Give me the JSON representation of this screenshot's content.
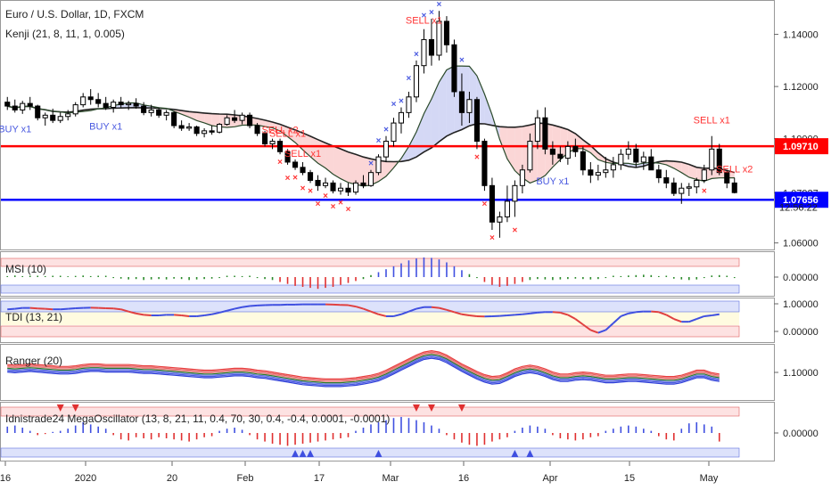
{
  "header": {
    "title": "Euro / U.S. Dollar, 1D, FXCM",
    "indicator": "Kenji (21, 8, 11, 1, 0.005)"
  },
  "colors": {
    "up_candle": "#ffffff",
    "down_candle": "#000000",
    "resistance_line": "#ff0000",
    "support_line": "#0000ff",
    "buy_marker": "#4a5ae0",
    "sell_marker": "#ff3333",
    "fast_ma": "#2b4a2b",
    "slow_ma": "#222222",
    "cloud_bull": "#d4d8f5",
    "cloud_bear": "#fbd6d6"
  },
  "chart_data": [
    {
      "type": "candlestick",
      "panel": "main",
      "title": "",
      "y_ticks": [
        "1.14000",
        "1.12000",
        "1.10000",
        "1.07927",
        "1.06000"
      ],
      "ylim": [
        1.0575,
        1.1525
      ],
      "x_ticks": [
        "16",
        "2020",
        "20",
        "Feb",
        "17",
        "Mar",
        "16",
        "Apr",
        "15",
        "May"
      ],
      "price_labels": [
        {
          "name": "resistance",
          "text": "1.09710",
          "value": 1.0971,
          "color": "#ff0000"
        },
        {
          "name": "support",
          "text": "1.07656",
          "value": 1.07656,
          "color": "#0000ff"
        }
      ],
      "last_price": "1.07927",
      "countdown": "12:56:22",
      "signal_labels": [
        {
          "text": "BUY x1",
          "type": "buy",
          "index": 1
        },
        {
          "text": "BUY x1",
          "type": "buy",
          "index": 13
        },
        {
          "text": "SELL x2",
          "type": "sell",
          "index": 36
        },
        {
          "text": "SELL x1",
          "type": "sell",
          "index": 37
        },
        {
          "text": "SELL x1",
          "type": "sell",
          "index": 39
        },
        {
          "text": "SELL x1",
          "type": "sell",
          "index": 57
        },
        {
          "text": "SELL x1",
          "type": "sell",
          "index": 55
        },
        {
          "text": "BUY x1",
          "type": "buy",
          "index": 72
        },
        {
          "text": "SELL x2",
          "type": "sell",
          "index": 96
        },
        {
          "text": "SELL x1",
          "type": "sell",
          "index": 93
        }
      ],
      "ohlc": [
        [
          1.114,
          1.116,
          1.111,
          1.1125
        ],
        [
          1.1125,
          1.115,
          1.11,
          1.111
        ],
        [
          1.111,
          1.1145,
          1.1095,
          1.1135
        ],
        [
          1.1135,
          1.116,
          1.111,
          1.1125
        ],
        [
          1.1125,
          1.113,
          1.107,
          1.108
        ],
        [
          1.108,
          1.11,
          1.105,
          1.109
        ],
        [
          1.109,
          1.1115,
          1.106,
          1.107
        ],
        [
          1.107,
          1.11,
          1.106,
          1.1085
        ],
        [
          1.1085,
          1.111,
          1.107,
          1.1095
        ],
        [
          1.1095,
          1.114,
          1.1085,
          1.113
        ],
        [
          1.113,
          1.1175,
          1.112,
          1.116
        ],
        [
          1.116,
          1.119,
          1.113,
          1.115
        ],
        [
          1.115,
          1.1175,
          1.112,
          1.1135
        ],
        [
          1.1135,
          1.116,
          1.111,
          1.112
        ],
        [
          1.112,
          1.115,
          1.11,
          1.114
        ],
        [
          1.114,
          1.116,
          1.112,
          1.113
        ],
        [
          1.113,
          1.1145,
          1.111,
          1.1135
        ],
        [
          1.1135,
          1.1155,
          1.1115,
          1.1125
        ],
        [
          1.1125,
          1.114,
          1.109,
          1.11
        ],
        [
          1.11,
          1.113,
          1.1085,
          1.111
        ],
        [
          1.111,
          1.112,
          1.108,
          1.109
        ],
        [
          1.109,
          1.111,
          1.107,
          1.11
        ],
        [
          1.11,
          1.1105,
          1.104,
          1.105
        ],
        [
          1.105,
          1.107,
          1.103,
          1.104
        ],
        [
          1.104,
          1.106,
          1.103,
          1.1045
        ],
        [
          1.1045,
          1.105,
          1.101,
          1.102
        ],
        [
          1.102,
          1.104,
          1.1005,
          1.103
        ],
        [
          1.103,
          1.105,
          1.1015,
          1.1025
        ],
        [
          1.1025,
          1.106,
          1.102,
          1.1055
        ],
        [
          1.1055,
          1.109,
          1.105,
          1.108
        ],
        [
          1.108,
          1.111,
          1.106,
          1.107
        ],
        [
          1.107,
          1.11,
          1.1055,
          1.109
        ],
        [
          1.109,
          1.11,
          1.104,
          1.105
        ],
        [
          1.105,
          1.106,
          1.101,
          1.102
        ],
        [
          1.102,
          1.103,
          1.097,
          1.098
        ],
        [
          1.098,
          1.1,
          1.096,
          1.099
        ],
        [
          1.099,
          1.1,
          1.094,
          1.095
        ],
        [
          1.095,
          1.096,
          1.09,
          1.091
        ],
        [
          1.091,
          1.092,
          1.088,
          1.089
        ],
        [
          1.089,
          1.091,
          1.086,
          1.087
        ],
        [
          1.087,
          1.088,
          1.083,
          1.084
        ],
        [
          1.084,
          1.086,
          1.08,
          1.082
        ],
        [
          1.082,
          1.085,
          1.081,
          1.083
        ],
        [
          1.083,
          1.084,
          1.079,
          1.08
        ],
        [
          1.08,
          1.083,
          1.0785,
          1.081
        ],
        [
          1.081,
          1.083,
          1.078,
          1.0795
        ],
        [
          1.0795,
          1.084,
          1.0785,
          1.083
        ],
        [
          1.083,
          1.086,
          1.081,
          1.082
        ],
        [
          1.082,
          1.088,
          1.0815,
          1.087
        ],
        [
          1.087,
          1.094,
          1.086,
          1.093
        ],
        [
          1.093,
          1.101,
          1.091,
          1.099
        ],
        [
          1.099,
          1.108,
          1.097,
          1.106
        ],
        [
          1.106,
          1.112,
          1.102,
          1.11
        ],
        [
          1.11,
          1.118,
          1.108,
          1.116
        ],
        [
          1.116,
          1.13,
          1.114,
          1.128
        ],
        [
          1.128,
          1.142,
          1.125,
          1.138
        ],
        [
          1.138,
          1.146,
          1.128,
          1.132
        ],
        [
          1.132,
          1.149,
          1.13,
          1.145
        ],
        [
          1.145,
          1.147,
          1.133,
          1.136
        ],
        [
          1.136,
          1.138,
          1.116,
          1.118
        ],
        [
          1.118,
          1.125,
          1.105,
          1.11
        ],
        [
          1.11,
          1.118,
          1.106,
          1.115
        ],
        [
          1.115,
          1.116,
          1.096,
          1.099
        ],
        [
          1.099,
          1.1,
          1.08,
          1.082
        ],
        [
          1.082,
          1.085,
          1.065,
          1.068
        ],
        [
          1.068,
          1.072,
          1.062,
          1.07
        ],
        [
          1.07,
          1.082,
          1.068,
          1.076
        ],
        [
          1.076,
          1.084,
          1.07,
          1.082
        ],
        [
          1.082,
          1.09,
          1.079,
          1.088
        ],
        [
          1.088,
          1.102,
          1.087,
          1.099
        ],
        [
          1.099,
          1.111,
          1.096,
          1.108
        ],
        [
          1.108,
          1.112,
          1.094,
          1.096
        ],
        [
          1.096,
          1.099,
          1.09,
          1.094
        ],
        [
          1.094,
          1.097,
          1.091,
          1.0925
        ],
        [
          1.0925,
          1.099,
          1.09,
          1.097
        ],
        [
          1.097,
          1.1,
          1.093,
          1.095
        ],
        [
          1.095,
          1.097,
          1.086,
          1.088
        ],
        [
          1.088,
          1.091,
          1.083,
          1.086
        ],
        [
          1.086,
          1.09,
          1.084,
          1.087
        ],
        [
          1.087,
          1.093,
          1.085,
          1.088
        ],
        [
          1.088,
          1.093,
          1.085,
          1.09
        ],
        [
          1.09,
          1.096,
          1.088,
          1.094
        ],
        [
          1.094,
          1.099,
          1.092,
          1.096
        ],
        [
          1.096,
          1.098,
          1.089,
          1.091
        ],
        [
          1.091,
          1.095,
          1.088,
          1.093
        ],
        [
          1.093,
          1.096,
          1.088,
          1.088
        ],
        [
          1.088,
          1.09,
          1.083,
          1.085
        ],
        [
          1.085,
          1.088,
          1.081,
          1.083
        ],
        [
          1.083,
          1.085,
          1.078,
          1.079
        ],
        [
          1.079,
          1.083,
          1.075,
          1.081
        ],
        [
          1.081,
          1.083,
          1.078,
          1.0815
        ],
        [
          1.0815,
          1.085,
          1.079,
          1.084
        ],
        [
          1.084,
          1.09,
          1.083,
          1.088
        ],
        [
          1.088,
          1.101,
          1.086,
          1.096
        ],
        [
          1.096,
          1.098,
          1.086,
          1.087
        ],
        [
          1.087,
          1.088,
          1.081,
          1.083
        ],
        [
          1.083,
          1.085,
          1.079,
          1.0793
        ]
      ],
      "buy_signal_index": [
        48,
        49,
        50,
        51,
        52,
        53,
        54,
        55,
        56,
        57,
        57,
        60
      ],
      "sell_signal_index": [
        36,
        37,
        38,
        39,
        40,
        41,
        42,
        43,
        44,
        45,
        62,
        63,
        64,
        67,
        92
      ]
    },
    {
      "type": "histogram",
      "panel": "oscillator-1",
      "title": "MSI (10)",
      "y_ticks": [
        "0.00000"
      ],
      "ylim": [
        -1,
        1
      ],
      "upper_band": 0.5,
      "lower_band": -0.5,
      "values": [
        0.05,
        0.08,
        0.05,
        0.03,
        0.02,
        0.05,
        0.03,
        0.02,
        0.04,
        0.06,
        0.08,
        0.05,
        0.02,
        -0.02,
        -0.05,
        -0.08,
        -0.12,
        -0.1,
        -0.15,
        -0.12,
        -0.1,
        -0.12,
        -0.08,
        -0.1,
        -0.15,
        -0.12,
        -0.1,
        -0.08,
        -0.05,
        -0.02,
        0.02,
        0.05,
        0.02,
        -0.05,
        -0.1,
        -0.15,
        -0.25,
        -0.35,
        -0.45,
        -0.5,
        -0.55,
        -0.6,
        -0.55,
        -0.5,
        -0.4,
        -0.3,
        -0.2,
        -0.1,
        0.1,
        0.25,
        0.4,
        0.55,
        0.7,
        0.85,
        0.95,
        1.0,
        0.98,
        0.9,
        0.75,
        0.55,
        0.35,
        0.15,
        -0.05,
        -0.25,
        -0.4,
        -0.5,
        -0.45,
        -0.35,
        -0.25,
        -0.15,
        -0.1,
        -0.12,
        -0.15,
        -0.12,
        -0.1,
        -0.08,
        -0.1,
        -0.12,
        -0.1,
        -0.05,
        0.02,
        0.05,
        0.08,
        0.1,
        0.12,
        0.1,
        0.05,
        -0.02,
        -0.08,
        -0.12,
        -0.15,
        -0.12,
        -0.05,
        0.08,
        0.1,
        0.02,
        -0.05
      ]
    },
    {
      "type": "line",
      "panel": "oscillator-2",
      "title": "TDI (13, 21)",
      "y_ticks": [
        "1.00000",
        "0.00000"
      ],
      "ylim": [
        -0.3,
        1.3
      ],
      "values": [
        0.8,
        0.82,
        0.85,
        0.85,
        0.83,
        0.82,
        0.8,
        0.8,
        0.82,
        0.84,
        0.85,
        0.86,
        0.85,
        0.84,
        0.83,
        0.8,
        0.72,
        0.65,
        0.6,
        0.58,
        0.58,
        0.6,
        0.6,
        0.58,
        0.55,
        0.55,
        0.58,
        0.62,
        0.68,
        0.75,
        0.82,
        0.88,
        0.92,
        0.94,
        0.95,
        0.96,
        0.96,
        0.97,
        0.97,
        0.98,
        0.98,
        0.98,
        0.98,
        0.97,
        0.96,
        0.95,
        0.9,
        0.82,
        0.72,
        0.62,
        0.55,
        0.55,
        0.62,
        0.72,
        0.82,
        0.88,
        0.88,
        0.85,
        0.78,
        0.7,
        0.62,
        0.58,
        0.55,
        0.54,
        0.55,
        0.56,
        0.58,
        0.6,
        0.62,
        0.65,
        0.68,
        0.7,
        0.7,
        0.68,
        0.6,
        0.45,
        0.25,
        0.05,
        -0.05,
        0.05,
        0.3,
        0.55,
        0.65,
        0.7,
        0.72,
        0.72,
        0.7,
        0.6,
        0.45,
        0.35,
        0.35,
        0.45,
        0.55,
        0.58,
        0.62
      ]
    },
    {
      "type": "band",
      "panel": "oscillator-3",
      "title": "Ranger (20)",
      "y_ticks": [
        "1.10000"
      ],
      "ylim": [
        1.06,
        1.145
      ],
      "mid": [
        1.109,
        1.108,
        1.109,
        1.11,
        1.109,
        1.108,
        1.107,
        1.106,
        1.106,
        1.107,
        1.109,
        1.11,
        1.11,
        1.109,
        1.109,
        1.109,
        1.109,
        1.108,
        1.107,
        1.107,
        1.106,
        1.105,
        1.104,
        1.103,
        1.102,
        1.101,
        1.1,
        1.1,
        1.101,
        1.102,
        1.103,
        1.103,
        1.102,
        1.1,
        1.099,
        1.097,
        1.095,
        1.093,
        1.091,
        1.089,
        1.088,
        1.087,
        1.086,
        1.086,
        1.086,
        1.087,
        1.088,
        1.09,
        1.092,
        1.095,
        1.1,
        1.106,
        1.112,
        1.118,
        1.124,
        1.129,
        1.131,
        1.129,
        1.124,
        1.117,
        1.11,
        1.104,
        1.098,
        1.093,
        1.09,
        1.091,
        1.096,
        1.102,
        1.106,
        1.108,
        1.106,
        1.102,
        1.097,
        1.094,
        1.094,
        1.096,
        1.097,
        1.096,
        1.094,
        1.092,
        1.092,
        1.093,
        1.094,
        1.094,
        1.093,
        1.092,
        1.091,
        1.09,
        1.09,
        1.092,
        1.096,
        1.1,
        1.1,
        1.096,
        1.094
      ]
    },
    {
      "type": "histogram",
      "panel": "oscillator-4",
      "title": "Idnistrade24 MegaOscillator (13, 8, 21, 11, 0.4, 70, 30, 0.4, -0.4, 0.0001, -0.0001)",
      "y_ticks": [
        "0.00000"
      ],
      "ylim": [
        -1,
        1
      ],
      "values": [
        0.3,
        0.35,
        0.25,
        0.1,
        -0.1,
        -0.05,
        0.05,
        0.1,
        0.2,
        0.35,
        0.5,
        0.4,
        0.3,
        0.2,
        -0.1,
        -0.3,
        -0.35,
        -0.2,
        -0.25,
        -0.3,
        -0.2,
        -0.25,
        -0.3,
        -0.35,
        -0.4,
        -0.3,
        -0.2,
        -0.15,
        0.1,
        0.2,
        0.25,
        0.15,
        -0.1,
        -0.3,
        -0.4,
        -0.5,
        -0.55,
        -0.6,
        -0.55,
        -0.5,
        -0.45,
        -0.4,
        -0.35,
        -0.3,
        -0.25,
        -0.2,
        0.1,
        0.25,
        0.4,
        0.5,
        0.6,
        0.7,
        0.75,
        0.7,
        0.6,
        0.5,
        0.35,
        0.2,
        -0.1,
        -0.3,
        -0.45,
        -0.55,
        -0.6,
        -0.55,
        -0.4,
        -0.3,
        -0.2,
        0.1,
        0.25,
        0.35,
        0.3,
        0.2,
        -0.1,
        -0.25,
        -0.3,
        -0.35,
        -0.3,
        -0.2,
        -0.15,
        0.1,
        0.2,
        0.3,
        0.35,
        0.3,
        0.2,
        0.1,
        -0.15,
        -0.3,
        -0.35,
        0.2,
        0.45,
        0.5,
        0.4,
        0.3,
        -0.4
      ],
      "up_triangles": [
        38,
        39,
        40,
        49,
        67,
        69
      ],
      "down_triangles": [
        7,
        9,
        54,
        56,
        60
      ]
    }
  ]
}
